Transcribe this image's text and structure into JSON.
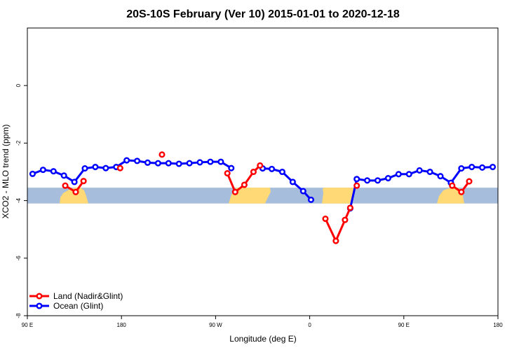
{
  "chart_data": {
    "type": "line",
    "title": "20S-10S February (Ver 10)   2015-01-01 to 2020-12-18",
    "xlabel": "Longitude (deg E)",
    "ylabel": "XCO2 - MLO trend (ppm)",
    "xlim": [
      90,
      450
    ],
    "ylim": [
      -8,
      2
    ],
    "x_ticks": [
      {
        "value": 90,
        "label": "90 E"
      },
      {
        "value": 162,
        "label": "180"
      },
      {
        "value": 234,
        "label": "90 W"
      },
      {
        "value": 306,
        "label": "0"
      },
      {
        "value": 378,
        "label": "90 E"
      },
      {
        "value": 450,
        "label": "180"
      }
    ],
    "y_ticks": [
      {
        "value": 0,
        "label": "0"
      },
      {
        "value": -2,
        "label": "-2"
      },
      {
        "value": -4,
        "label": "-4"
      },
      {
        "value": -6,
        "label": "-6"
      },
      {
        "value": -8,
        "label": "-8"
      }
    ],
    "legend_position": "bottom-left",
    "land_band": {
      "y_range": [
        -4.1,
        -3.55
      ],
      "ocean_color": "#a6bddb",
      "land_color": "#fed976"
    },
    "series": [
      {
        "name": "Land (Nadir&Glint)",
        "color": "#ff0000",
        "segments": [
          [
            [
              119,
              -3.48
            ],
            [
              127,
              -3.7
            ],
            [
              133,
              -3.32
            ]
          ],
          [
            [
              161,
              -2.87
            ]
          ],
          [
            [
              193,
              -2.4
            ]
          ],
          [
            [
              243,
              -3.05
            ],
            [
              249,
              -3.7
            ],
            [
              256,
              -3.45
            ],
            [
              263,
              -3.0
            ],
            [
              268,
              -2.78
            ]
          ],
          [
            [
              318,
              -4.63
            ],
            [
              326,
              -5.4
            ],
            [
              333,
              -4.67
            ],
            [
              337,
              -4.25
            ]
          ],
          [
            [
              342,
              -3.48
            ]
          ],
          [
            [
              415,
              -3.48
            ],
            [
              422,
              -3.7
            ],
            [
              428,
              -3.33
            ]
          ]
        ]
      },
      {
        "name": "Ocean (Glint)",
        "color": "#0000ff",
        "segments": [
          [
            [
              94,
              -3.07
            ],
            [
              102,
              -2.93
            ],
            [
              110,
              -2.98
            ],
            [
              118,
              -3.13
            ],
            [
              126,
              -3.35
            ],
            [
              134,
              -2.88
            ],
            [
              142,
              -2.83
            ],
            [
              150,
              -2.87
            ],
            [
              158,
              -2.83
            ],
            [
              166,
              -2.6
            ],
            [
              174,
              -2.62
            ],
            [
              182,
              -2.68
            ],
            [
              190,
              -2.7
            ],
            [
              198,
              -2.7
            ],
            [
              206,
              -2.72
            ],
            [
              214,
              -2.7
            ],
            [
              222,
              -2.67
            ],
            [
              230,
              -2.65
            ],
            [
              238,
              -2.65
            ],
            [
              246,
              -2.87
            ]
          ],
          [
            [
              270,
              -2.88
            ],
            [
              277,
              -2.9
            ],
            [
              285,
              -3.0
            ],
            [
              293,
              -3.35
            ],
            [
              301,
              -3.67
            ],
            [
              307,
              -3.97
            ]
          ],
          [
            [
              337,
              -4.27
            ],
            [
              342,
              -3.25
            ],
            [
              350,
              -3.3
            ],
            [
              358,
              -3.3
            ],
            [
              366,
              -3.22
            ],
            [
              374,
              -3.08
            ],
            [
              382,
              -3.08
            ],
            [
              390,
              -2.95
            ],
            [
              398,
              -3.0
            ],
            [
              406,
              -3.15
            ],
            [
              414,
              -3.38
            ],
            [
              422,
              -2.88
            ],
            [
              430,
              -2.83
            ],
            [
              438,
              -2.85
            ],
            [
              446,
              -2.83
            ]
          ]
        ]
      }
    ]
  }
}
